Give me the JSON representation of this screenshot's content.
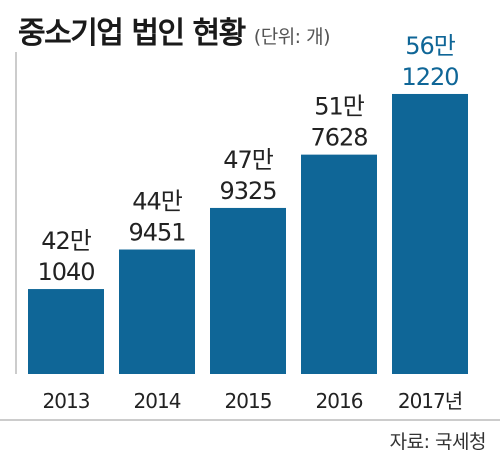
{
  "header": {
    "title": "중소기업 법인 현황",
    "unit": "(단위: 개)"
  },
  "footer": {
    "source": "자료: 국세청"
  },
  "colors": {
    "bar": "#0f6697",
    "highlight_text": "#0f6697",
    "text": "#222222",
    "axis": "#999999"
  },
  "chart_data": {
    "type": "bar",
    "title": "중소기업 법인 현황",
    "unit": "(단위: 개)",
    "categories": [
      "2013",
      "2014",
      "2015",
      "2016",
      "2017년"
    ],
    "values": [
      421040,
      449451,
      479325,
      517628,
      561220
    ],
    "labels": [
      {
        "top": "42만",
        "bottom": "1040"
      },
      {
        "top": "44만",
        "bottom": "9451"
      },
      {
        "top": "47만",
        "bottom": "9325"
      },
      {
        "top": "51만",
        "bottom": "7628"
      },
      {
        "top": "56만",
        "bottom": "1220"
      }
    ],
    "highlight_index": 4,
    "ylim": [
      0,
      600000
    ],
    "grid": false,
    "legend": "none"
  }
}
